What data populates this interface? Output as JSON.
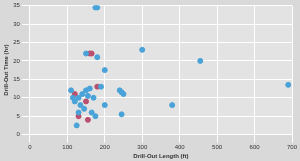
{
  "chart_data": {
    "type": "scatter",
    "x_label": "Drill-Out Length (ft)",
    "y_label": "Drill-Out Time (hr)",
    "xlim": [
      0,
      700
    ],
    "xticks": [
      0,
      100,
      200,
      300,
      400,
      500,
      600,
      700
    ],
    "ylim": [
      0,
      35
    ],
    "yticks": [
      0,
      5,
      10,
      15,
      20,
      25,
      30,
      35
    ],
    "grid": true,
    "series": [
      {
        "color": "#4aa3d8",
        "marker": "circle",
        "x": [
          175,
          180,
          300,
          455,
          690,
          380,
          200,
          150,
          150,
          160,
          140,
          130,
          110,
          115,
          120,
          135,
          130,
          125,
          170,
          175,
          165,
          145,
          245,
          250,
          240,
          190,
          200,
          245,
          180,
          155
        ],
        "values": [
          34.5,
          34.5,
          23,
          20,
          13.5,
          8,
          17.5,
          22,
          12,
          12.5,
          11,
          10,
          12,
          10,
          9,
          8,
          6,
          2.5,
          10,
          5,
          6,
          7,
          11.5,
          11,
          12,
          13,
          8,
          5.5,
          21,
          10.5
        ]
      },
      {
        "color": "#b8506e",
        "marker": "circle",
        "x": [
          165,
          160,
          180,
          130,
          155,
          150,
          120
        ],
        "values": [
          22,
          22,
          13,
          5,
          4,
          9,
          11
        ]
      }
    ]
  }
}
